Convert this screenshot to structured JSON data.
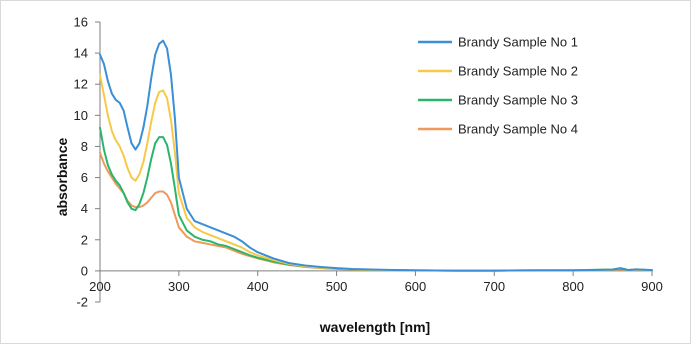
{
  "chart_data": {
    "type": "line",
    "title": "",
    "xlabel": "wavelength [nm]",
    "ylabel": "absorbance",
    "xlim": [
      200,
      900
    ],
    "ylim": [
      -2,
      16
    ],
    "xticks": [
      200,
      300,
      400,
      500,
      600,
      700,
      800,
      900
    ],
    "yticks": [
      -2,
      0,
      2,
      4,
      6,
      8,
      10,
      12,
      14,
      16
    ],
    "grid": false,
    "legend_position": "top-right",
    "series": [
      {
        "name": "Brandy Sample No 1",
        "color": "#3a8fd6",
        "x": [
          200,
          205,
          210,
          215,
          220,
          225,
          230,
          235,
          240,
          245,
          250,
          255,
          260,
          265,
          270,
          275,
          280,
          285,
          290,
          295,
          300,
          310,
          320,
          330,
          340,
          350,
          360,
          370,
          380,
          390,
          400,
          420,
          440,
          460,
          480,
          500,
          520,
          550,
          600,
          650,
          700,
          750,
          800,
          850,
          860,
          870,
          880,
          900
        ],
        "y": [
          13.9,
          13.3,
          12.2,
          11.4,
          11.0,
          10.8,
          10.3,
          9.2,
          8.2,
          7.8,
          8.2,
          9.2,
          10.6,
          12.4,
          13.9,
          14.6,
          14.8,
          14.3,
          12.6,
          9.8,
          6.0,
          4.0,
          3.2,
          3.0,
          2.8,
          2.6,
          2.4,
          2.2,
          1.9,
          1.5,
          1.2,
          0.8,
          0.5,
          0.35,
          0.25,
          0.18,
          0.12,
          0.08,
          0.03,
          0.02,
          0.02,
          0.03,
          0.03,
          0.08,
          0.15,
          0.05,
          0.1,
          0.05
        ]
      },
      {
        "name": "Brandy Sample No 2",
        "color": "#f7c949",
        "x": [
          200,
          205,
          210,
          215,
          220,
          225,
          230,
          235,
          240,
          245,
          250,
          255,
          260,
          265,
          270,
          275,
          280,
          285,
          290,
          295,
          300,
          310,
          320,
          330,
          340,
          350,
          360,
          370,
          380,
          390,
          400,
          420,
          440,
          460,
          480,
          500,
          520,
          550,
          600,
          650,
          700,
          750,
          800,
          850,
          860,
          870,
          880,
          900
        ],
        "y": [
          12.6,
          11.3,
          10.0,
          9.0,
          8.4,
          8.0,
          7.4,
          6.6,
          6.0,
          5.8,
          6.2,
          7.0,
          8.2,
          9.6,
          10.8,
          11.5,
          11.6,
          11.1,
          9.7,
          7.6,
          5.0,
          3.4,
          2.8,
          2.5,
          2.3,
          2.1,
          1.9,
          1.7,
          1.5,
          1.2,
          1.0,
          0.7,
          0.45,
          0.3,
          0.2,
          0.15,
          0.1,
          0.06,
          0.03,
          0.02,
          0.02,
          0.03,
          0.03,
          0.07,
          0.12,
          0.05,
          0.08,
          0.04
        ]
      },
      {
        "name": "Brandy Sample No 3",
        "color": "#2bb56a",
        "x": [
          200,
          205,
          210,
          215,
          220,
          225,
          230,
          235,
          240,
          245,
          250,
          255,
          260,
          265,
          270,
          275,
          280,
          285,
          290,
          295,
          300,
          310,
          320,
          330,
          340,
          350,
          360,
          370,
          380,
          390,
          400,
          420,
          440,
          460,
          480,
          500,
          520,
          550,
          600,
          650,
          700,
          750,
          800,
          850,
          860,
          870,
          880,
          900
        ],
        "y": [
          9.2,
          7.8,
          6.8,
          6.2,
          5.8,
          5.5,
          5.0,
          4.4,
          4.0,
          3.9,
          4.3,
          5.0,
          6.0,
          7.2,
          8.2,
          8.6,
          8.6,
          8.1,
          6.9,
          5.3,
          3.6,
          2.6,
          2.2,
          2.0,
          1.9,
          1.7,
          1.6,
          1.4,
          1.2,
          1.0,
          0.85,
          0.6,
          0.4,
          0.28,
          0.2,
          0.14,
          0.1,
          0.06,
          0.03,
          0.02,
          0.02,
          0.03,
          0.04,
          0.09,
          0.18,
          0.06,
          0.1,
          0.04
        ]
      },
      {
        "name": "Brandy Sample No 4",
        "color": "#ef9a5c",
        "x": [
          200,
          205,
          210,
          215,
          220,
          225,
          230,
          235,
          240,
          245,
          250,
          255,
          260,
          265,
          270,
          275,
          280,
          285,
          290,
          295,
          300,
          310,
          320,
          330,
          340,
          350,
          360,
          370,
          380,
          390,
          400,
          420,
          440,
          460,
          480,
          500,
          520,
          550,
          600,
          650,
          700,
          750,
          800,
          850,
          860,
          870,
          880,
          900
        ],
        "y": [
          7.6,
          6.9,
          6.4,
          6.0,
          5.6,
          5.3,
          5.0,
          4.5,
          4.2,
          4.1,
          4.1,
          4.2,
          4.4,
          4.7,
          5.0,
          5.1,
          5.1,
          4.9,
          4.4,
          3.6,
          2.8,
          2.2,
          1.9,
          1.8,
          1.7,
          1.6,
          1.5,
          1.3,
          1.1,
          0.95,
          0.8,
          0.55,
          0.38,
          0.26,
          0.18,
          0.13,
          0.09,
          0.05,
          0.03,
          0.02,
          0.02,
          0.03,
          0.03,
          0.06,
          0.1,
          0.04,
          0.07,
          0.03
        ]
      }
    ]
  }
}
